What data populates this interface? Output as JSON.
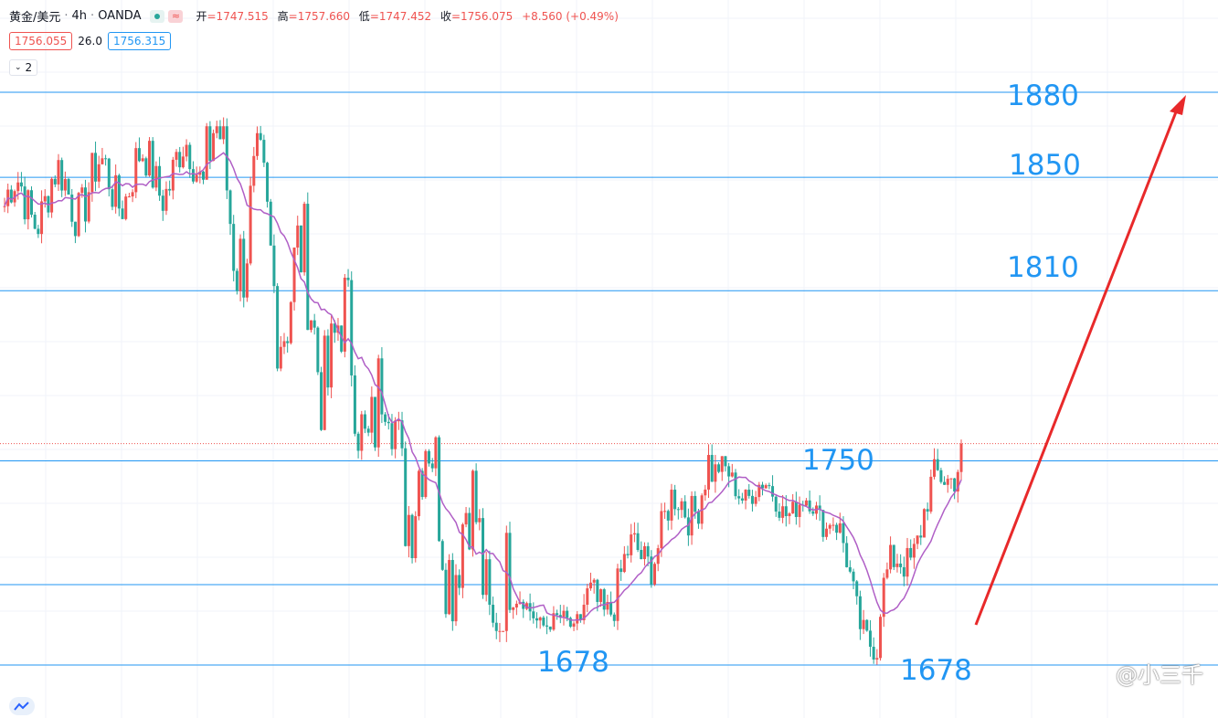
{
  "header": {
    "symbol": "黄金/美元",
    "separator": "·",
    "timeframe": "4h",
    "exchange": "OANDA",
    "ohlc": [
      {
        "label": "开",
        "value": "=1747.515"
      },
      {
        "label": "高",
        "value": "=1757.660"
      },
      {
        "label": "低",
        "value": "=1747.452"
      },
      {
        "label": "收",
        "value": "=1756.075"
      },
      {
        "label": "",
        "value": "+8.560 (+0.49%)"
      }
    ]
  },
  "trade": {
    "sell_price": "1756.055",
    "spread": "26.0",
    "buy_price": "1756.315"
  },
  "indicator_toggle": {
    "label": "2"
  },
  "levels": [
    {
      "price": 1880,
      "label": "1880"
    },
    {
      "price": 1850,
      "label": "1850"
    },
    {
      "price": 1810,
      "label": "1810"
    },
    {
      "price": 1750,
      "label": "1750"
    },
    {
      "price": 1678,
      "label": "1678"
    },
    {
      "price": 1678,
      "label": "1678"
    }
  ],
  "watermark": "@小三千",
  "colors": {
    "up": "#ef5350",
    "down": "#26a69a",
    "ma": "#b05fc6",
    "level_line": "#2196f3",
    "arrow": "#e8292a",
    "grid": "#f0f3fa"
  },
  "chart_data": {
    "type": "candlestick",
    "instrument": "XAU/USD",
    "timeframe": "4h",
    "last_close": 1756.075,
    "horizontal_levels": [
      1880,
      1850,
      1810,
      1750,
      1678
    ],
    "projection": {
      "from": 1705,
      "to": 1880,
      "direction": "up"
    },
    "ohlc_segments": [
      {
        "phase": "range-high",
        "start": 1840,
        "end": 1855,
        "high": 1882,
        "low": 1800
      },
      {
        "phase": "decline",
        "start": 1855,
        "end": 1700,
        "high": 1868,
        "low": 1690
      },
      {
        "phase": "bottom-1",
        "start": 1700,
        "end": 1690,
        "high": 1705,
        "low": 1677
      },
      {
        "phase": "rebound",
        "start": 1690,
        "end": 1745,
        "high": 1755,
        "low": 1685
      },
      {
        "phase": "range-mid",
        "start": 1745,
        "end": 1730,
        "high": 1755,
        "low": 1715
      },
      {
        "phase": "bottom-2",
        "start": 1730,
        "end": 1680,
        "high": 1732,
        "low": 1678
      },
      {
        "phase": "recovery",
        "start": 1700,
        "end": 1756,
        "high": 1758,
        "low": 1695
      }
    ]
  }
}
